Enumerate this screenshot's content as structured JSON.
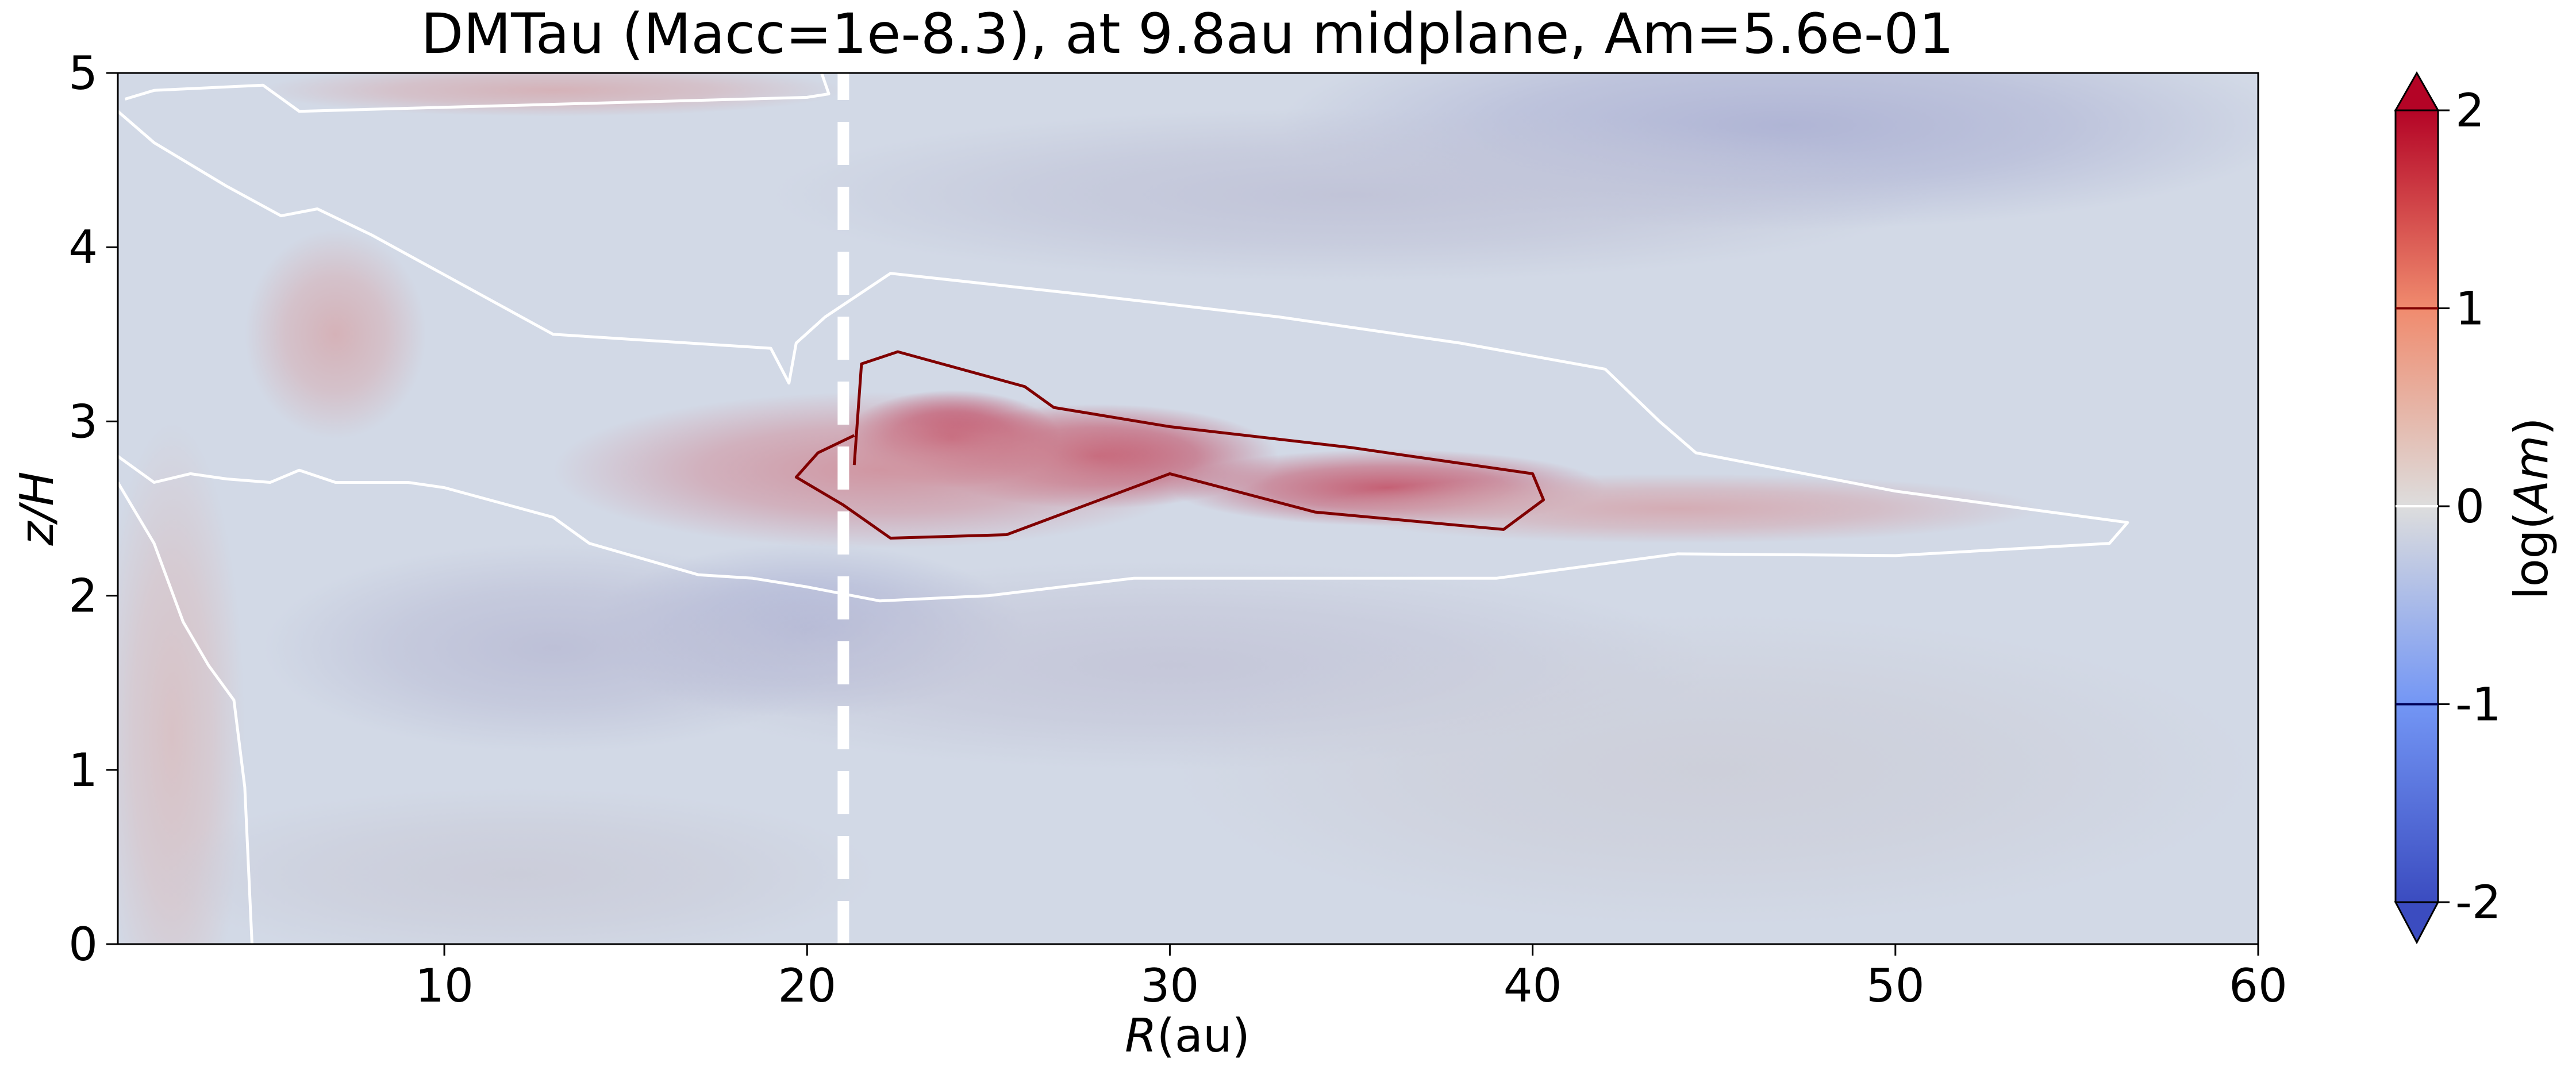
{
  "chart_data": {
    "type": "heatmap",
    "title": "DMTau (Macc=1e-8.3), at 9.8au midplane, Am=5.6e-01",
    "xlabel_main": "R",
    "xlabel_unit": "(au)",
    "ylabel": "z/H",
    "xlim": [
      1,
      60
    ],
    "ylim": [
      0,
      5
    ],
    "x_ticks": [
      10,
      20,
      30,
      40,
      50,
      60
    ],
    "y_ticks": [
      0,
      1,
      2,
      3,
      4,
      5
    ],
    "grid": false,
    "colormap": "coolwarm",
    "colors": {
      "low": "#3b4cc0",
      "mid": "#dddddd",
      "high": "#b40426"
    },
    "colorbar": {
      "label_prefix": "log(",
      "label_var": "Am",
      "label_suffix": ")",
      "range": [
        -2,
        2
      ],
      "ticks": [
        {
          "value": 2,
          "label": "2"
        },
        {
          "value": 1,
          "label": "1"
        },
        {
          "value": 0,
          "label": "0"
        },
        {
          "value": -1,
          "label": "-1"
        },
        {
          "value": -2,
          "label": "-2"
        }
      ],
      "extend": "both"
    },
    "reference_line": {
      "x": 21,
      "style": "dashed",
      "color": "#ffffff"
    },
    "contour_level_0": {
      "color": "#ffffff",
      "paths": [
        [
          [
            1.2,
            4.85
          ],
          [
            2,
            4.9
          ],
          [
            5,
            4.93
          ],
          [
            6,
            4.78
          ],
          [
            20,
            4.86
          ],
          [
            20.6,
            4.88
          ],
          [
            20.4,
            5
          ]
        ],
        [
          [
            1,
            4.78
          ],
          [
            2,
            4.6
          ],
          [
            4,
            4.35
          ],
          [
            5.5,
            4.18
          ],
          [
            6.5,
            4.22
          ],
          [
            8,
            4.07
          ],
          [
            13,
            3.5
          ],
          [
            19,
            3.42
          ],
          [
            19.5,
            3.22
          ],
          [
            19.7,
            3.45
          ],
          [
            20.5,
            3.6
          ],
          [
            22.3,
            3.85
          ],
          [
            28,
            3.72
          ],
          [
            33,
            3.6
          ],
          [
            38,
            3.45
          ],
          [
            42,
            3.3
          ],
          [
            43.5,
            3.0
          ],
          [
            44.5,
            2.82
          ],
          [
            50,
            2.6
          ],
          [
            56.4,
            2.42
          ],
          [
            55.9,
            2.3
          ],
          [
            50,
            2.23
          ],
          [
            44,
            2.24
          ],
          [
            39,
            2.1
          ],
          [
            32,
            2.1
          ],
          [
            29,
            2.1
          ],
          [
            25,
            2.0
          ],
          [
            22,
            1.97
          ],
          [
            20,
            2.05
          ],
          [
            18.5,
            2.1
          ],
          [
            17,
            2.12
          ],
          [
            14,
            2.3
          ],
          [
            13,
            2.45
          ],
          [
            10,
            2.62
          ],
          [
            9,
            2.65
          ],
          [
            7,
            2.65
          ],
          [
            6,
            2.72
          ],
          [
            5.2,
            2.65
          ],
          [
            4,
            2.67
          ],
          [
            3,
            2.7
          ],
          [
            2,
            2.65
          ],
          [
            1,
            2.8
          ]
        ],
        [
          [
            1,
            2.65
          ],
          [
            2,
            2.3
          ],
          [
            2.8,
            1.85
          ],
          [
            3.5,
            1.6
          ],
          [
            4.2,
            1.4
          ],
          [
            4.5,
            0.9
          ],
          [
            4.7,
            0
          ]
        ]
      ]
    },
    "contour_level_1": {
      "color": "#800000",
      "paths": [
        [
          [
            21.3,
            2.75
          ],
          [
            21.5,
            3.33
          ],
          [
            22.5,
            3.4
          ],
          [
            26,
            3.2
          ],
          [
            26.8,
            3.08
          ],
          [
            30,
            2.97
          ],
          [
            35,
            2.85
          ],
          [
            40,
            2.7
          ],
          [
            40.3,
            2.55
          ],
          [
            39.2,
            2.38
          ],
          [
            34,
            2.48
          ],
          [
            30,
            2.7
          ],
          [
            25.5,
            2.35
          ],
          [
            22.3,
            2.33
          ],
          [
            21,
            2.52
          ],
          [
            19.7,
            2.68
          ],
          [
            20.3,
            2.82
          ],
          [
            21.3,
            2.92
          ]
        ]
      ]
    },
    "field_blobs": [
      {
        "x": 24,
        "y": 2.9,
        "rx": 3.0,
        "ry": 0.28,
        "value": 1.75
      },
      {
        "x": 28,
        "y": 2.8,
        "rx": 5.0,
        "ry": 0.3,
        "value": 1.3
      },
      {
        "x": 36,
        "y": 2.62,
        "rx": 6.0,
        "ry": 0.22,
        "value": 1.15
      },
      {
        "x": 22,
        "y": 2.72,
        "rx": 9.0,
        "ry": 0.45,
        "value": 0.65
      },
      {
        "x": 44,
        "y": 2.5,
        "rx": 10.0,
        "ry": 0.2,
        "value": 0.45
      },
      {
        "x": 7,
        "y": 3.5,
        "rx": 2.5,
        "ry": 0.6,
        "value": 0.4
      },
      {
        "x": 13,
        "y": 4.9,
        "rx": 8.0,
        "ry": 0.15,
        "value": 0.4
      },
      {
        "x": 2.5,
        "y": 1.2,
        "rx": 2.0,
        "ry": 1.8,
        "value": 0.25
      },
      {
        "x": 20,
        "y": 1.8,
        "rx": 6.0,
        "ry": 0.5,
        "value": -0.55
      },
      {
        "x": 13,
        "y": 1.7,
        "rx": 8.0,
        "ry": 0.6,
        "value": -0.4
      },
      {
        "x": 47,
        "y": 4.7,
        "rx": 14.0,
        "ry": 0.6,
        "value": -0.55
      },
      {
        "x": 35,
        "y": 4.3,
        "rx": 16.0,
        "ry": 0.5,
        "value": -0.35
      },
      {
        "x": 30,
        "y": 1.6,
        "rx": 15.0,
        "ry": 0.6,
        "value": -0.3
      },
      {
        "x": 45,
        "y": 1.0,
        "rx": 15.0,
        "ry": 0.9,
        "value": -0.2
      },
      {
        "x": 12,
        "y": 0.4,
        "rx": 10.0,
        "ry": 0.5,
        "value": -0.22
      }
    ]
  }
}
